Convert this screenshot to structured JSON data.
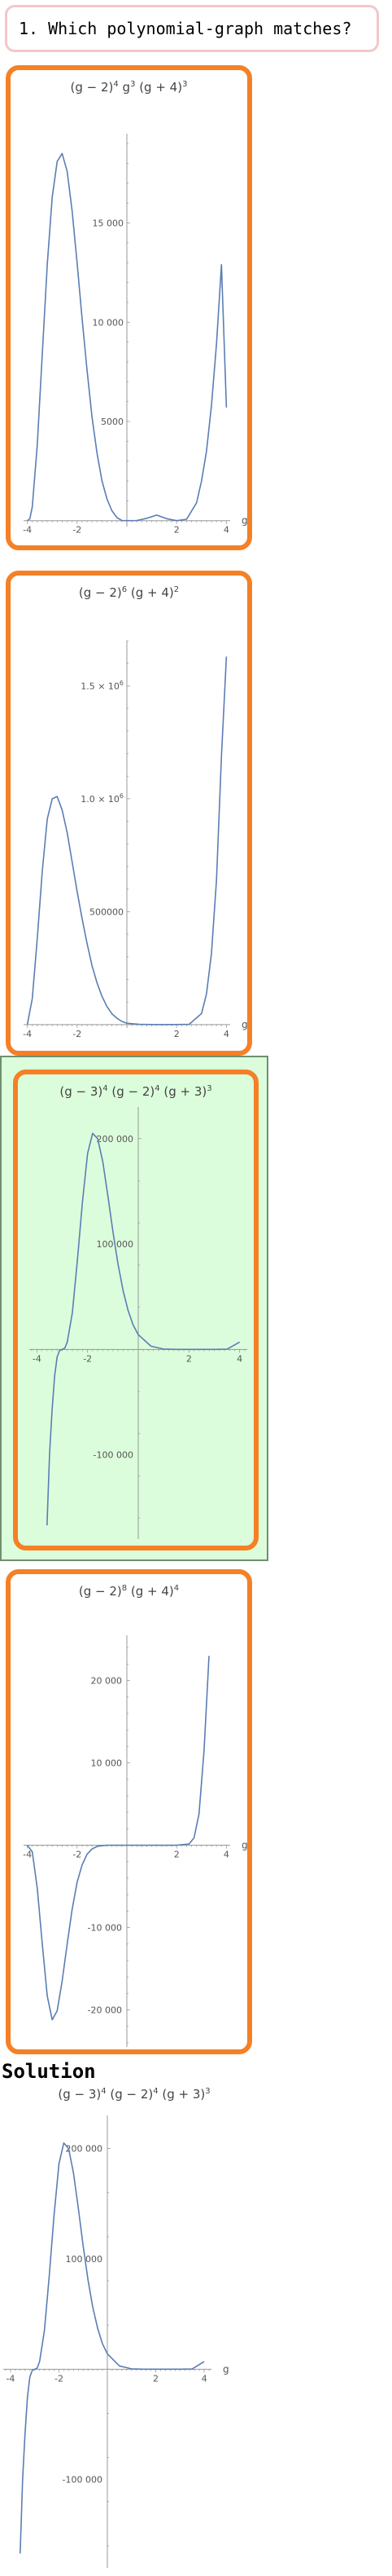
{
  "question": {
    "text": "1. Which polynomial-graph matches?"
  },
  "solution": {
    "heading": "Solution"
  },
  "colors": {
    "card_border": "#f58025",
    "correct_background": "#dcfddc",
    "curve": "#5b7db4",
    "question_border": "#f4c6c9"
  },
  "options": [
    {
      "title_parts": [
        "(g − 2)",
        "4",
        " g",
        "3",
        " (g + 4)",
        "3"
      ],
      "correct": false
    },
    {
      "title_parts": [
        "(g − 2)",
        "6",
        " (g + 4)",
        "2"
      ],
      "correct": false
    },
    {
      "title_parts": [
        "(g − 3)",
        "4",
        " (g − 2)",
        "4",
        " (g + 3)",
        "3"
      ],
      "correct": true
    },
    {
      "title_parts": [
        "(g − 2)",
        "8",
        " (g + 4)",
        "4"
      ],
      "correct": false
    }
  ],
  "solution_title_parts": [
    "(g − 3)",
    "4",
    " (g − 2)",
    "4",
    " (g + 3)",
    "3"
  ],
  "chart_data": [
    {
      "type": "line",
      "title": "(g − 2)^4 g^3 (g + 4)^3",
      "xlabel": "g",
      "ylabel": "",
      "xlim": [
        -4.15,
        4.15
      ],
      "ylim": [
        -300,
        19500
      ],
      "xticks": [
        -4,
        -2,
        2,
        4
      ],
      "yticks": [
        5000,
        10000,
        15000
      ],
      "ytick_labels": [
        "5000",
        "10 000",
        "15 000"
      ],
      "series": [
        {
          "x": [
            -4.0,
            -3.9,
            -3.8,
            -3.6,
            -3.4,
            -3.2,
            -3.0,
            -2.8,
            -2.6,
            -2.4,
            -2.2,
            -2.0,
            -1.8,
            -1.6,
            -1.4,
            -1.2,
            -1.0,
            -0.8,
            -0.6,
            -0.4,
            -0.2,
            0.0,
            0.4,
            0.8,
            1.2,
            1.6,
            2.0,
            2.4,
            2.8,
            3.0,
            3.2,
            3.4,
            3.6,
            3.8,
            4.0
          ],
          "y": [
            0,
            100,
            700,
            3800,
            8400,
            12900,
            16300,
            18100,
            18500,
            17600,
            15600,
            13000,
            10200,
            7600,
            5200,
            3400,
            2000,
            1100,
            500,
            150,
            10,
            0,
            10,
            120,
            280,
            100,
            0,
            70,
            900,
            2000,
            3500,
            5800,
            8900,
            12900,
            5700
          ]
        }
      ]
    },
    {
      "type": "line",
      "title": "(g − 2)^6 (g + 4)^2",
      "xlabel": "g",
      "ylabel": "",
      "xlim": [
        -4.15,
        4.15
      ],
      "ylim": [
        -15000,
        1700000
      ],
      "xticks": [
        -4,
        -2,
        2,
        4
      ],
      "yticks": [
        500000,
        1000000,
        1500000
      ],
      "ytick_labels": [
        "500000",
        "1.0 × 10^6",
        "1.5 × 10^6"
      ],
      "series": [
        {
          "x": [
            -4.0,
            -3.8,
            -3.6,
            -3.4,
            -3.2,
            -3.0,
            -2.8,
            -2.6,
            -2.4,
            -2.2,
            -2.0,
            -1.8,
            -1.6,
            -1.4,
            -1.2,
            -1.0,
            -0.8,
            -0.6,
            -0.4,
            -0.2,
            0.0,
            0.5,
            1.0,
            1.5,
            2.0,
            2.5,
            3.0,
            3.2,
            3.4,
            3.6,
            3.8,
            4.0
          ],
          "y": [
            0,
            115000,
            380000,
            680000,
            910000,
            1000000,
            1010000,
            950000,
            850000,
            720000,
            590000,
            470000,
            360000,
            260000,
            185000,
            125000,
            80000,
            48000,
            28000,
            14000,
            6000,
            1000,
            100,
            0,
            0,
            1000,
            49000,
            136000,
            315000,
            640000,
            1190000,
            1630000
          ]
        }
      ]
    },
    {
      "type": "line",
      "title": "(g − 3)^4 (g − 2)^4 (g + 3)^3",
      "xlabel": "g",
      "ylabel": "",
      "xlim": [
        -4.3,
        4.3
      ],
      "ylim": [
        -180000,
        230000
      ],
      "xticks": [
        -4,
        -2,
        2,
        4
      ],
      "yticks": [
        -100000,
        100000,
        200000
      ],
      "ytick_labels": [
        "-100 000",
        "100 000",
        "200 000"
      ],
      "series": [
        {
          "x": [
            -3.6,
            -3.5,
            -3.4,
            -3.3,
            -3.2,
            -3.1,
            -3.0,
            -2.9,
            -2.8,
            -2.6,
            -2.4,
            -2.2,
            -2.0,
            -1.8,
            -1.6,
            -1.4,
            -1.2,
            -1.0,
            -0.8,
            -0.6,
            -0.4,
            -0.2,
            0.0,
            0.5,
            1.0,
            1.5,
            2.0,
            2.5,
            3.0,
            3.5,
            4.0
          ],
          "y": [
            -167000,
            -100000,
            -58000,
            -25000,
            -7000,
            -1000,
            0,
            1000,
            7000,
            35000,
            85000,
            140000,
            186000,
            205000,
            200000,
            178000,
            146000,
            112000,
            81000,
            56000,
            37000,
            23000,
            14000,
            3000,
            300,
            0,
            0,
            10,
            0,
            200,
            7000
          ]
        }
      ]
    },
    {
      "type": "line",
      "title": "(g − 2)^8 (g + 4)^4",
      "xlabel": "g",
      "ylabel": "",
      "xlim": [
        -4.15,
        4.15
      ],
      "ylim": [
        -24500,
        25500
      ],
      "xticks": [
        -4,
        -2,
        2,
        4
      ],
      "yticks": [
        -20000,
        -10000,
        10000,
        20000
      ],
      "ytick_labels": [
        "-20 000",
        "-10 000",
        "10 000",
        "20 000"
      ],
      "series": [
        {
          "x": [
            -4.0,
            -3.8,
            -3.6,
            -3.4,
            -3.2,
            -3.0,
            -2.8,
            -2.6,
            -2.4,
            -2.2,
            -2.0,
            -1.8,
            -1.6,
            -1.4,
            -1.2,
            -1.0,
            -0.8,
            -0.6,
            -0.4,
            -0.2,
            0.0,
            0.5,
            1.0,
            1.5,
            2.0,
            2.5,
            2.7,
            2.9,
            3.1,
            3.3
          ],
          "y": [
            0,
            -800,
            -5200,
            -12000,
            -18300,
            -21200,
            -20100,
            -16500,
            -12000,
            -7800,
            -4500,
            -2400,
            -1100,
            -450,
            -150,
            -40,
            -5,
            0,
            0,
            0,
            0,
            0,
            0,
            0,
            0,
            150,
            900,
            3800,
            11500,
            23000
          ]
        }
      ]
    }
  ]
}
